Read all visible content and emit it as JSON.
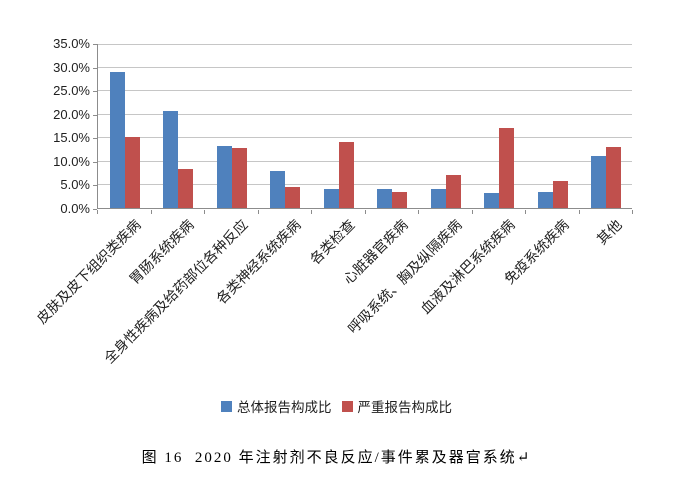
{
  "chart_data": {
    "type": "bar",
    "title": "",
    "categories": [
      "皮肤及皮下组织类疾病",
      "胃肠系统疾病",
      "全身性疾病及给药部位各种反应",
      "各类神经系统疾病",
      "各类检查",
      "心脏器官疾病",
      "呼吸系统、胸及纵隔疾病",
      "血液及淋巴系统疾病",
      "免疫系统疾病",
      "其他"
    ],
    "series": [
      {
        "name": "总体报告构成比",
        "color": "#4F81BD",
        "values": [
          28.8,
          20.6,
          13.2,
          7.9,
          4.0,
          4.0,
          4.0,
          3.1,
          3.3,
          11.1
        ]
      },
      {
        "name": "严重报告构成比",
        "color": "#C0504D",
        "values": [
          15.0,
          8.2,
          12.7,
          4.4,
          14.1,
          3.3,
          7.1,
          16.9,
          5.8,
          12.9
        ]
      }
    ],
    "ylim": [
      0,
      35
    ],
    "ytick_step": 5,
    "yticks": [
      "0.0%",
      "5.0%",
      "10.0%",
      "15.0%",
      "20.0%",
      "25.0%",
      "30.0%",
      "35.0%"
    ],
    "grid": true,
    "legend_position": "bottom",
    "colors": {
      "grid": "#c6c6c6",
      "axis": "#8c8c8c",
      "text": "#1f1f1f"
    }
  },
  "caption": {
    "text": "图 16  2020 年注射剂不良反应/事件累及器官系统",
    "return_mark": "↵"
  }
}
